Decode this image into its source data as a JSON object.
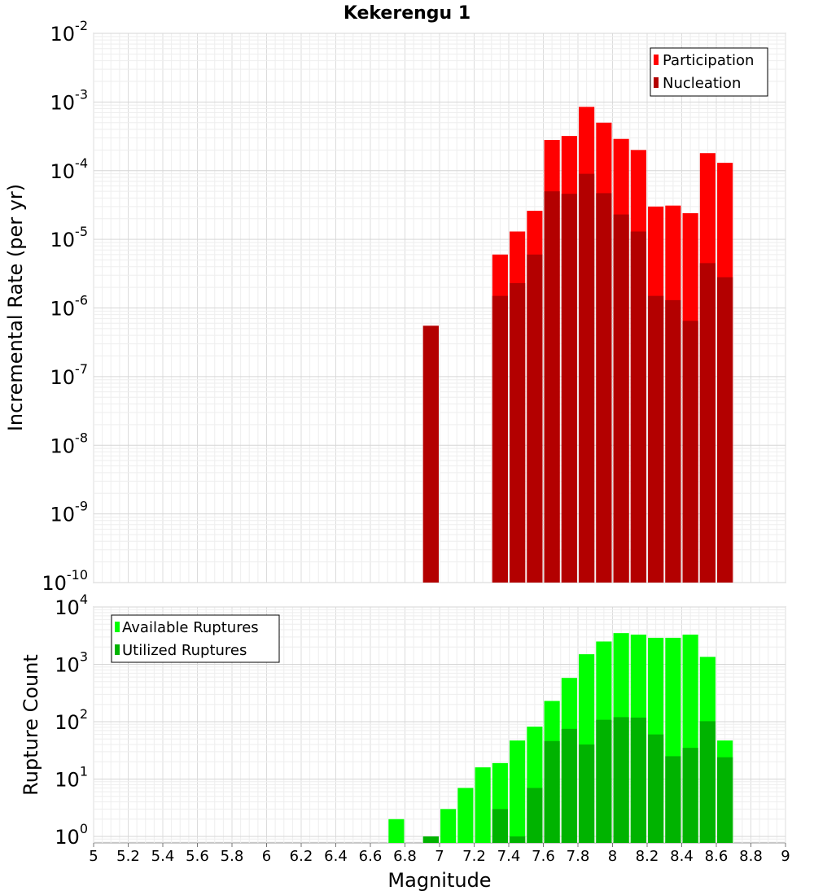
{
  "chart_data": [
    {
      "type": "bar",
      "title": "Kekerengu 1",
      "xlabel": "",
      "ylabel": "Incremental Rate (per yr)",
      "yscale": "log",
      "ylim": [
        1e-10,
        0.01
      ],
      "xlim": [
        5,
        9
      ],
      "grid": true,
      "legend_position": "top-right",
      "x": [
        6.95,
        7.35,
        7.45,
        7.55,
        7.65,
        7.75,
        7.85,
        7.95,
        8.05,
        8.15,
        8.25,
        8.35,
        8.45,
        8.55,
        8.65
      ],
      "series": [
        {
          "name": "Participation",
          "color": "#ff0000",
          "values": [
            5.5e-07,
            6e-06,
            1.3e-05,
            2.6e-05,
            0.00028,
            0.00032,
            0.00085,
            0.0005,
            0.00029,
            0.0002,
            3e-05,
            3.1e-05,
            2.4e-05,
            0.00018,
            0.00013
          ]
        },
        {
          "name": "Nucleation",
          "color": "#b30000",
          "values": [
            5.5e-07,
            1.5e-06,
            2.3e-06,
            6e-06,
            5e-05,
            4.6e-05,
            9e-05,
            4.7e-05,
            2.3e-05,
            1.3e-05,
            1.5e-06,
            1.3e-06,
            6.5e-07,
            4.5e-06,
            2.8e-06
          ]
        }
      ]
    },
    {
      "type": "bar",
      "title": "",
      "xlabel": "Magnitude",
      "ylabel": "Rupture Count",
      "yscale": "log",
      "ylim": [
        0.77,
        10000
      ],
      "xlim": [
        5,
        9
      ],
      "grid": true,
      "legend_position": "top-left",
      "x": [
        6.75,
        6.95,
        7.05,
        7.15,
        7.25,
        7.35,
        7.45,
        7.55,
        7.65,
        7.75,
        7.85,
        7.95,
        8.05,
        8.15,
        8.25,
        8.35,
        8.45,
        8.55,
        8.65
      ],
      "series": [
        {
          "name": "Available Ruptures",
          "color": "#00ff00",
          "values": [
            2,
            1,
            3,
            7,
            16,
            19,
            47,
            82,
            230,
            580,
            1500,
            2500,
            3500,
            3300,
            2900,
            2900,
            3300,
            1350,
            47
          ]
        },
        {
          "name": "Utilized Ruptures",
          "color": "#00b300",
          "values": [
            0,
            1,
            0,
            0,
            0,
            3,
            1,
            7,
            46,
            75,
            40,
            108,
            120,
            118,
            60,
            25,
            35,
            102,
            24
          ]
        }
      ]
    }
  ],
  "x_ticks": [
    "5",
    "5.2",
    "5.4",
    "5.6",
    "5.8",
    "6",
    "6.2",
    "6.4",
    "6.6",
    "6.8",
    "7",
    "7.2",
    "7.4",
    "7.6",
    "7.8",
    "8",
    "8.2",
    "8.4",
    "8.6",
    "8.8",
    "9"
  ],
  "top_y_ticks": [
    {
      "base": "10",
      "exp": "-10"
    },
    {
      "base": "10",
      "exp": "-9"
    },
    {
      "base": "10",
      "exp": "-8"
    },
    {
      "base": "10",
      "exp": "-7"
    },
    {
      "base": "10",
      "exp": "-6"
    },
    {
      "base": "10",
      "exp": "-5"
    },
    {
      "base": "10",
      "exp": "-4"
    },
    {
      "base": "10",
      "exp": "-3"
    },
    {
      "base": "10",
      "exp": "-2"
    }
  ],
  "bottom_y_ticks": [
    {
      "base": "10",
      "exp": "0"
    },
    {
      "base": "10",
      "exp": "1"
    },
    {
      "base": "10",
      "exp": "2"
    },
    {
      "base": "10",
      "exp": "3"
    },
    {
      "base": "10",
      "exp": "4"
    }
  ]
}
